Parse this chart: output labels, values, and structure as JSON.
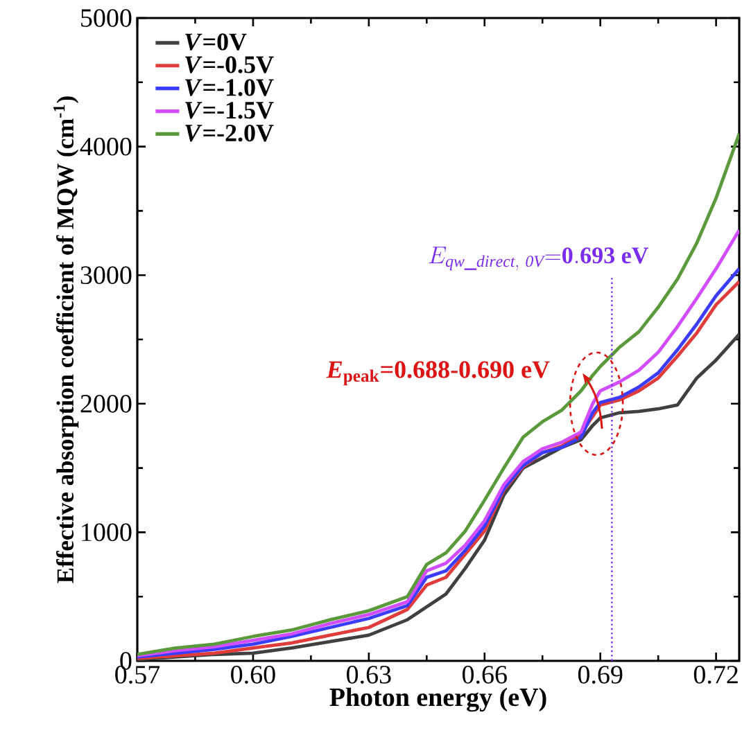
{
  "chart_data": {
    "type": "line",
    "xlabel": "Photon energy (eV)",
    "ylabel": "Effective absorption coefficient of MQW (cm$^{-1}$)",
    "x": [
      0.57,
      0.58,
      0.59,
      0.6,
      0.61,
      0.62,
      0.63,
      0.64,
      0.645,
      0.65,
      0.655,
      0.66,
      0.665,
      0.67,
      0.675,
      0.68,
      0.685,
      0.688,
      0.69,
      0.695,
      0.7,
      0.705,
      0.71,
      0.715,
      0.72,
      0.726
    ],
    "series": [
      {
        "name": "*V*=0V",
        "color": "#404040",
        "values": [
          10,
          30,
          50,
          60,
          100,
          150,
          200,
          320,
          420,
          520,
          720,
          940,
          1290,
          1500,
          1580,
          1660,
          1720,
          1830,
          1890,
          1930,
          1940,
          1960,
          1990,
          2200,
          2340,
          2540
        ]
      },
      {
        "name": "*V*=-0.5V",
        "color": "#e03c3c",
        "values": [
          20,
          40,
          60,
          100,
          140,
          200,
          260,
          400,
          590,
          650,
          830,
          1010,
          1330,
          1510,
          1620,
          1670,
          1770,
          1900,
          1990,
          2030,
          2100,
          2200,
          2370,
          2550,
          2770,
          2950
        ]
      },
      {
        "name": "*V*=-1.0V",
        "color": "#3c3cff",
        "values": [
          30,
          60,
          90,
          130,
          190,
          260,
          330,
          430,
          650,
          700,
          860,
          1050,
          1340,
          1520,
          1620,
          1660,
          1740,
          1930,
          2010,
          2050,
          2130,
          2240,
          2420,
          2620,
          2840,
          3050
        ]
      },
      {
        "name": "*V*=-1.5V",
        "color": "#d24dff",
        "values": [
          40,
          80,
          110,
          160,
          210,
          290,
          360,
          460,
          700,
          760,
          900,
          1090,
          1370,
          1550,
          1650,
          1700,
          1780,
          2000,
          2100,
          2170,
          2260,
          2400,
          2600,
          2820,
          3050,
          3350
        ]
      },
      {
        "name": "*V*=-2.0V",
        "color": "#5a9a3c",
        "values": [
          50,
          100,
          130,
          190,
          240,
          320,
          390,
          500,
          750,
          840,
          1010,
          1250,
          1500,
          1740,
          1860,
          1950,
          2100,
          2220,
          2290,
          2440,
          2560,
          2750,
          2970,
          3250,
          3600,
          4100
        ]
      }
    ],
    "xlim": [
      0.57,
      0.726
    ],
    "ylim": [
      0,
      5000
    ],
    "xticks": [
      0.57,
      {
        "value": 0.6,
        "label": "0.60"
      },
      0.63,
      0.66,
      0.69,
      0.72
    ],
    "yticks": [
      0,
      1000,
      2000,
      3000,
      4000,
      5000
    ],
    "ref_lines": [
      {
        "axis": "x",
        "value": 0.693,
        "label": "E_{\\mathit{qw\\_direct,\\ 0V}}\\mathbf{{=}0.693\\ eV}",
        "color": "#7b2cf0",
        "line_style": "dotted"
      }
    ],
    "annotations": [
      {
        "text": "*E*$_{peak}$=0.688-0.690 eV",
        "x": 0.689,
        "y": 2000
      }
    ],
    "legend": "top left",
    "grid": false,
    "line_style": "solid",
    "marker": "none"
  }
}
